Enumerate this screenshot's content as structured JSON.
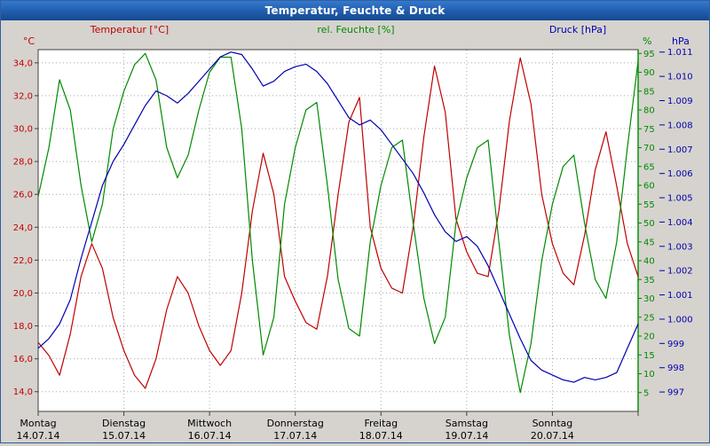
{
  "window": {
    "title": "Temperatur, Feuchte & Druck"
  },
  "header": {
    "temp_label": "Temperatur [°C]",
    "hum_label": "rel. Feuchte [%]",
    "press_label": "Druck [hPa]",
    "temp_unit": "°C",
    "hum_unit": "%",
    "press_unit": "hPa"
  },
  "colors": {
    "temp": "#c00000",
    "hum": "#008a00",
    "press": "#0000b0",
    "grid": "#a8a8a8",
    "axis": "#404040",
    "plot_bg": "#ffffff",
    "bg": "#d6d3ce",
    "text": "#000000"
  },
  "chart_data": {
    "type": "line",
    "title": "Temperatur, Feuchte & Druck",
    "x_unit": "hours",
    "x_step_hours": 3,
    "x_range_hours": [
      0,
      168
    ],
    "days": [
      {
        "name": "Montag",
        "date": "14.07.14"
      },
      {
        "name": "Dienstag",
        "date": "15.07.14"
      },
      {
        "name": "Mittwoch",
        "date": "16.07.14"
      },
      {
        "name": "Donnerstag",
        "date": "17.07.14"
      },
      {
        "name": "Freitag",
        "date": "18.07.14"
      },
      {
        "name": "Samstag",
        "date": "19.07.14"
      },
      {
        "name": "Sonntag",
        "date": "20.07.14"
      }
    ],
    "axes": {
      "temperature": {
        "label": "Temperatur [°C]",
        "unit": "°C",
        "side": "left",
        "range": [
          12.8,
          34.8
        ],
        "ticks": [
          {
            "v": 34,
            "label": "34,0"
          },
          {
            "v": 32,
            "label": "32,0"
          },
          {
            "v": 30,
            "label": "30,0"
          },
          {
            "v": 28,
            "label": "28,0"
          },
          {
            "v": 26,
            "label": "26,0"
          },
          {
            "v": 24,
            "label": "24,0"
          },
          {
            "v": 22,
            "label": "22,0"
          },
          {
            "v": 20,
            "label": "20,0"
          },
          {
            "v": 18,
            "label": "18,0"
          },
          {
            "v": 16,
            "label": "16,0"
          },
          {
            "v": 14,
            "label": "14,0"
          }
        ]
      },
      "humidity": {
        "label": "rel. Feuchte [%]",
        "unit": "%",
        "side": "right-inner",
        "range": [
          0,
          96
        ],
        "ticks": [
          {
            "v": 95,
            "label": "95"
          },
          {
            "v": 90,
            "label": "90"
          },
          {
            "v": 85,
            "label": "85"
          },
          {
            "v": 80,
            "label": "80"
          },
          {
            "v": 75,
            "label": "75"
          },
          {
            "v": 70,
            "label": "70"
          },
          {
            "v": 65,
            "label": "65"
          },
          {
            "v": 60,
            "label": "60"
          },
          {
            "v": 55,
            "label": "55"
          },
          {
            "v": 50,
            "label": "50"
          },
          {
            "v": 45,
            "label": "45"
          },
          {
            "v": 40,
            "label": "40"
          },
          {
            "v": 35,
            "label": "35"
          },
          {
            "v": 30,
            "label": "30"
          },
          {
            "v": 25,
            "label": "25"
          },
          {
            "v": 20,
            "label": "20"
          },
          {
            "v": 15,
            "label": "15"
          },
          {
            "v": 10,
            "label": "10"
          },
          {
            "v": 5,
            "label": "5"
          }
        ]
      },
      "pressure": {
        "label": "Druck [hPa]",
        "unit": "hPa",
        "side": "right-outer",
        "range": [
          996.2,
          1011.1
        ],
        "ticks": [
          {
            "v": 1011,
            "label": "1.011"
          },
          {
            "v": 1010,
            "label": "1.010"
          },
          {
            "v": 1009,
            "label": "1.009"
          },
          {
            "v": 1008,
            "label": "1.008"
          },
          {
            "v": 1007,
            "label": "1.007"
          },
          {
            "v": 1006,
            "label": "1.006"
          },
          {
            "v": 1005,
            "label": "1.005"
          },
          {
            "v": 1004,
            "label": "1.004"
          },
          {
            "v": 1003,
            "label": "1.003"
          },
          {
            "v": 1002,
            "label": "1.002"
          },
          {
            "v": 1001,
            "label": "1.001"
          },
          {
            "v": 1000,
            "label": "1.000"
          },
          {
            "v": 999,
            "label": "999"
          },
          {
            "v": 998,
            "label": "998"
          },
          {
            "v": 997,
            "label": "997"
          }
        ]
      }
    },
    "series": [
      {
        "name": "Temperatur",
        "axis": "temperature",
        "color_key": "temp",
        "values": [
          17.0,
          16.2,
          15.0,
          17.5,
          21.0,
          23.0,
          21.5,
          18.5,
          16.5,
          15.0,
          14.2,
          16.0,
          19.0,
          21.0,
          20.0,
          18.0,
          16.5,
          15.6,
          16.5,
          20.0,
          25.0,
          28.5,
          26.0,
          21.0,
          19.5,
          18.2,
          17.8,
          21.0,
          26.0,
          30.4,
          31.9,
          24.0,
          21.5,
          20.3,
          20.0,
          24.0,
          29.5,
          33.8,
          31.0,
          24.5,
          22.5,
          21.2,
          21.0,
          25.0,
          30.5,
          34.3,
          31.5,
          26.0,
          23.0,
          21.2,
          20.5,
          23.5,
          27.5,
          29.8,
          26.5,
          23.0,
          21.0
        ]
      },
      {
        "name": "rel. Feuchte",
        "axis": "humidity",
        "color_key": "hum",
        "values": [
          57,
          70,
          88,
          80,
          60,
          45,
          55,
          75,
          85,
          92,
          95,
          88,
          70,
          62,
          68,
          80,
          90,
          94,
          94,
          75,
          40,
          15,
          25,
          55,
          70,
          80,
          82,
          60,
          35,
          22,
          20,
          45,
          60,
          70,
          72,
          50,
          30,
          18,
          25,
          50,
          62,
          70,
          72,
          45,
          20,
          5,
          18,
          40,
          55,
          65,
          68,
          50,
          35,
          30,
          45,
          70,
          93
        ]
      },
      {
        "name": "Druck",
        "axis": "pressure",
        "color_key": "press",
        "values": [
          998.8,
          999.2,
          999.8,
          1000.8,
          1002.5,
          1004.0,
          1005.5,
          1006.5,
          1007.2,
          1008.0,
          1008.8,
          1009.4,
          1009.2,
          1008.9,
          1009.3,
          1009.8,
          1010.3,
          1010.8,
          1011.0,
          1010.9,
          1010.3,
          1009.6,
          1009.8,
          1010.2,
          1010.4,
          1010.5,
          1010.2,
          1009.7,
          1009.0,
          1008.3,
          1008.0,
          1008.2,
          1007.8,
          1007.2,
          1006.6,
          1006.0,
          1005.2,
          1004.3,
          1003.6,
          1003.2,
          1003.4,
          1003.0,
          1002.2,
          1001.2,
          1000.2,
          999.2,
          998.3,
          997.9,
          997.7,
          997.5,
          997.4,
          997.6,
          997.5,
          997.6,
          997.8,
          998.8,
          999.8
        ]
      }
    ],
    "grid": true,
    "legend_position": "top"
  }
}
